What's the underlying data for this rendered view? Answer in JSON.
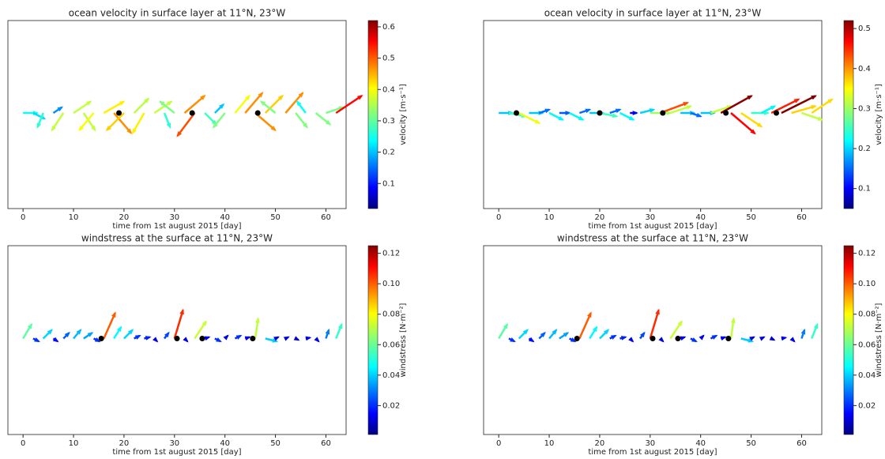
{
  "chart_data": [
    {
      "type": "quiver",
      "title": "ocean velocity in surface layer at 11°N, 23°W",
      "xlabel": "time from 1st august 2015 [day]",
      "colorbar_label": "velocity [m·s⁻¹]",
      "colormap": "jet",
      "xlim": [
        -3,
        64
      ],
      "xticks": [
        0,
        10,
        20,
        30,
        40,
        50,
        60
      ],
      "clim": [
        0.02,
        0.62
      ],
      "cticks": [
        0.1,
        0.2,
        0.3,
        0.4,
        0.5,
        0.6
      ],
      "x": [
        0,
        2,
        4,
        6,
        8,
        10,
        12,
        14,
        16,
        18,
        20,
        22,
        24,
        26,
        28,
        30,
        32,
        34,
        36,
        38,
        40,
        42,
        44,
        46,
        48,
        50,
        52,
        54,
        56,
        58,
        60,
        62
      ],
      "u": [
        0.25,
        0.2,
        -0.1,
        0.15,
        -0.2,
        0.3,
        0.2,
        -0.25,
        0.35,
        0.3,
        -0.3,
        0.25,
        -0.2,
        0.3,
        0.1,
        -0.25,
        0.35,
        -0.3,
        0.2,
        0.15,
        -0.2,
        0.25,
        0.3,
        0.35,
        0.3,
        -0.25,
        0.3,
        0.2,
        -0.15,
        0.25,
        0.3,
        0.45
      ],
      "v": [
        0,
        -0.1,
        -0.25,
        0.1,
        -0.3,
        0.2,
        -0.3,
        -0.3,
        0.2,
        -0.35,
        -0.3,
        0.25,
        -0.35,
        0.2,
        -0.25,
        0.2,
        0.3,
        -0.4,
        -0.2,
        0.15,
        -0.25,
        0.3,
        0.35,
        -0.3,
        0.3,
        0.2,
        0.35,
        -0.25,
        0.2,
        -0.2,
        0.1,
        0.3
      ],
      "points": [
        19,
        33.5,
        46.5
      ]
    },
    {
      "type": "quiver",
      "title": "ocean velocity in surface layer at 11°N, 23°W",
      "xlabel": "time from 1st august 2015 [day]",
      "colorbar_label": "velocity [m·s⁻¹]",
      "colormap": "jet",
      "xlim": [
        -3,
        64
      ],
      "xticks": [
        0,
        10,
        20,
        30,
        40,
        50,
        60
      ],
      "clim": [
        0.05,
        0.52
      ],
      "cticks": [
        0.1,
        0.2,
        0.3,
        0.4,
        0.5
      ],
      "x": [
        0,
        2,
        4,
        6,
        8,
        10,
        12,
        14,
        16,
        18,
        20,
        22,
        24,
        26,
        28,
        30,
        32,
        34,
        36,
        38,
        40,
        42,
        44,
        46,
        48,
        50,
        52,
        54,
        56,
        58,
        60,
        62
      ],
      "u": [
        0.2,
        0.25,
        0.3,
        0.2,
        0.15,
        0.2,
        0.15,
        0.2,
        0.15,
        0.2,
        0.25,
        0.15,
        0.2,
        0.1,
        0.2,
        0.3,
        0.4,
        0.3,
        0.2,
        0.15,
        0.2,
        0.3,
        0.45,
        0.35,
        0.3,
        0.25,
        0.2,
        0.4,
        0.5,
        0.35,
        0.3,
        0.3
      ],
      "v": [
        0,
        -0.05,
        -0.15,
        0,
        0.05,
        -0.1,
        0,
        -0.1,
        0.05,
        0,
        -0.05,
        0.05,
        -0.1,
        0,
        0.05,
        0,
        0.15,
        0.1,
        0,
        -0.05,
        0,
        0.1,
        0.25,
        -0.3,
        -0.2,
        0,
        0.1,
        0.2,
        0.25,
        0.1,
        -0.1,
        0.2
      ],
      "points": [
        3.5,
        20,
        32.5,
        45,
        55
      ]
    },
    {
      "type": "quiver",
      "title": "windstress at the surface at 11°N, 23°W",
      "xlabel": "time from 1st august 2015 [day]",
      "colorbar_label": "windstress [N·m⁻²]",
      "colormap": "jet",
      "xlim": [
        -3,
        64
      ],
      "xticks": [
        0,
        10,
        20,
        30,
        40,
        50,
        60
      ],
      "clim": [
        0.001,
        0.125
      ],
      "cticks": [
        {
          "value": 0.02,
          "label": "0.02"
        },
        {
          "value": 0.04,
          "label": "0.04"
        },
        {
          "value": 0.06,
          "label": "0.06"
        },
        {
          "value": 0.08,
          "label": "0.08"
        },
        {
          "value": 0.1,
          "label": "0.10"
        },
        {
          "value": 0.12,
          "label": "0.12"
        }
      ],
      "x": [
        0,
        2,
        4,
        6,
        8,
        10,
        12,
        14,
        16,
        18,
        20,
        22,
        24,
        26,
        28,
        30,
        32,
        34,
        36,
        38,
        40,
        42,
        44,
        46,
        48,
        50,
        52,
        54,
        56,
        58,
        60,
        62
      ],
      "u": [
        0.03,
        0.02,
        0.03,
        0.015,
        0.02,
        0.025,
        0.03,
        0.02,
        0.04,
        0.025,
        0.03,
        0.02,
        0.02,
        0.01,
        0.015,
        0.03,
        0.01,
        0.04,
        0.015,
        0.02,
        0.01,
        0.02,
        0.015,
        0.01,
        0.04,
        0.01,
        0.01,
        0.01,
        0.015,
        0.01,
        0.01,
        0.02
      ],
      "v": [
        0.05,
        -0.01,
        0.03,
        -0.01,
        0.02,
        0.03,
        0.02,
        -0.01,
        0.09,
        0.04,
        0.03,
        0.01,
        0.005,
        -0.01,
        0.02,
        0.1,
        -0.01,
        0.06,
        0.005,
        -0.01,
        0.01,
        0.01,
        0.005,
        0.07,
        -0.01,
        0.005,
        0.005,
        -0.005,
        0.003,
        -0.01,
        0.03,
        0.05
      ],
      "points": [
        15.5,
        30.5,
        35.5,
        45.5
      ]
    },
    {
      "type": "quiver",
      "title": "windstress at the surface at 11°N, 23°W",
      "xlabel": "time from 1st august 2015 [day]",
      "colorbar_label": "windstress [N·m⁻²]",
      "colormap": "jet",
      "xlim": [
        -3,
        64
      ],
      "xticks": [
        0,
        10,
        20,
        30,
        40,
        50,
        60
      ],
      "clim": [
        0.001,
        0.125
      ],
      "cticks": [
        {
          "value": 0.02,
          "label": "0.02"
        },
        {
          "value": 0.04,
          "label": "0.04"
        },
        {
          "value": 0.06,
          "label": "0.06"
        },
        {
          "value": 0.08,
          "label": "0.08"
        },
        {
          "value": 0.1,
          "label": "0.10"
        },
        {
          "value": 0.12,
          "label": "0.12"
        }
      ],
      "x": [
        0,
        2,
        4,
        6,
        8,
        10,
        12,
        14,
        16,
        18,
        20,
        22,
        24,
        26,
        28,
        30,
        32,
        34,
        36,
        38,
        40,
        42,
        44,
        46,
        48,
        50,
        52,
        54,
        56,
        58,
        60,
        62
      ],
      "u": [
        0.03,
        0.02,
        0.03,
        0.015,
        0.02,
        0.025,
        0.03,
        0.02,
        0.04,
        0.025,
        0.03,
        0.02,
        0.02,
        0.01,
        0.015,
        0.03,
        0.01,
        0.04,
        0.015,
        0.02,
        0.01,
        0.02,
        0.015,
        0.01,
        0.04,
        0.01,
        0.01,
        0.01,
        0.015,
        0.01,
        0.01,
        0.02
      ],
      "v": [
        0.05,
        -0.01,
        0.03,
        -0.01,
        0.02,
        0.03,
        0.02,
        -0.01,
        0.09,
        0.04,
        0.03,
        0.01,
        0.005,
        -0.01,
        0.02,
        0.1,
        -0.01,
        0.06,
        0.005,
        -0.01,
        0.01,
        0.01,
        0.005,
        0.07,
        -0.01,
        0.005,
        0.005,
        -0.005,
        0.003,
        -0.01,
        0.03,
        0.05
      ],
      "points": [
        15.5,
        30.5,
        35.5,
        45.5
      ]
    }
  ]
}
